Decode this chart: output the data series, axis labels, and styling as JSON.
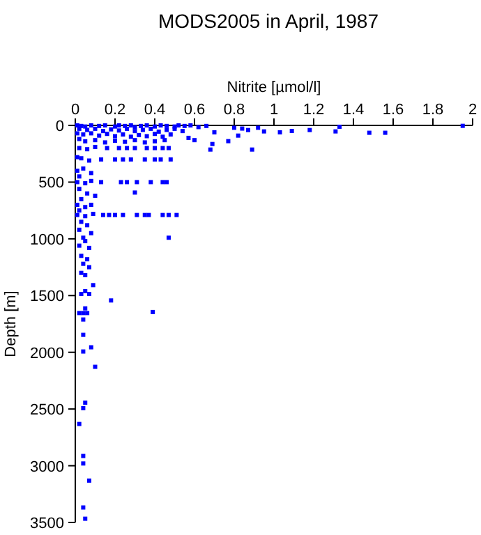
{
  "chart_data": {
    "type": "scatter",
    "title": "MODS2005 in April, 1987",
    "xlabel": "Nitrite [µmol/l]",
    "ylabel": "Depth [m]",
    "xlim": [
      0,
      2
    ],
    "xticks": [
      0,
      0.2,
      0.4,
      0.6,
      0.8,
      1,
      1.2,
      1.4,
      1.6,
      1.8,
      2
    ],
    "ylim": [
      3500,
      0
    ],
    "yticks": [
      0,
      500,
      1000,
      1500,
      2000,
      2500,
      3000,
      3500
    ],
    "grid": false,
    "marker": "square",
    "series": [
      {
        "color": "#0000ff",
        "x": [
          0.01,
          0.03,
          0.05,
          0.08,
          0.12,
          0.15,
          0.2,
          0.22,
          0.25,
          0.28,
          0.3,
          0.33,
          0.36,
          0.4,
          0.43,
          0.46,
          0.5,
          0.52,
          0.55,
          0.58,
          0.62,
          0.66,
          0.02,
          0.06,
          0.1,
          0.14,
          0.18,
          0.22,
          0.26,
          0.3,
          0.34,
          0.38,
          0.42,
          0.46,
          0.5,
          0.54,
          0.01,
          0.04,
          0.08,
          0.12,
          0.16,
          0.2,
          0.24,
          0.28,
          0.32,
          0.36,
          0.4,
          0.44,
          0.48,
          0.02,
          0.05,
          0.1,
          0.15,
          0.2,
          0.25,
          0.3,
          0.35,
          0.4,
          0.45,
          0.57,
          0.6,
          0.8,
          0.84,
          0.87,
          0.92,
          0.95,
          1.03,
          1.09,
          1.18,
          1.31,
          1.33,
          1.48,
          1.56,
          1.95,
          0.77,
          0.82,
          0.89,
          0.7,
          0.69,
          0.68,
          0.16,
          0.22,
          0.26,
          0.3,
          0.36,
          0.4,
          0.44,
          0.47,
          0.02,
          0.06,
          0.1,
          0.13,
          0.2,
          0.24,
          0.28,
          0.35,
          0.4,
          0.43,
          0.48,
          0.03,
          0.07,
          0.01,
          0.01,
          0.04,
          0.08,
          0.02,
          0.13,
          0.23,
          0.26,
          0.31,
          0.38,
          0.44,
          0.46,
          0.01,
          0.05,
          0.08,
          0.3,
          0.02,
          0.06,
          0.1,
          0.03,
          0.01,
          0.05,
          0.08,
          0.02,
          0.14,
          0.17,
          0.2,
          0.24,
          0.31,
          0.35,
          0.37,
          0.44,
          0.47,
          0.51,
          0.01,
          0.05,
          0.09,
          0.03,
          0.06,
          0.02,
          0.08,
          0.04,
          0.47,
          0.05,
          0.02,
          0.07,
          0.03,
          0.06,
          0.04,
          0.07,
          0.03,
          0.05,
          0.09,
          0.05,
          0.03,
          0.07,
          0.18,
          0.05,
          0.02,
          0.04,
          0.06,
          0.39,
          0.04,
          0.04,
          0.08,
          0.04,
          0.1,
          0.05,
          0.04,
          0.02,
          0.04,
          0.04,
          0.07,
          0.04,
          0.05
        ],
        "values": [
          0,
          5,
          10,
          0,
          5,
          0,
          10,
          0,
          5,
          0,
          15,
          5,
          0,
          10,
          0,
          5,
          10,
          0,
          5,
          0,
          15,
          5,
          30,
          40,
          30,
          50,
          35,
          45,
          30,
          50,
          40,
          30,
          55,
          40,
          30,
          50,
          70,
          80,
          70,
          90,
          75,
          95,
          80,
          100,
          85,
          95,
          75,
          100,
          80,
          120,
          140,
          130,
          150,
          135,
          145,
          130,
          150,
          140,
          130,
          110,
          130,
          21,
          28,
          41,
          21,
          53,
          61,
          49,
          41,
          53,
          12,
          65,
          65,
          4,
          139,
          90,
          213,
          61,
          164,
          213,
          200,
          200,
          200,
          200,
          200,
          200,
          200,
          200,
          200,
          210,
          190,
          300,
          300,
          300,
          300,
          300,
          300,
          300,
          300,
          290,
          310,
          280,
          400,
          380,
          420,
          450,
          500,
          500,
          500,
          500,
          500,
          500,
          500,
          500,
          510,
          490,
          592,
          560,
          600,
          620,
          650,
          700,
          720,
          700,
          750,
          790,
          790,
          790,
          790,
          790,
          790,
          790,
          790,
          790,
          790,
          790,
          800,
          780,
          850,
          880,
          920,
          950,
          990,
          990,
          1020,
          1060,
          1080,
          1150,
          1180,
          1220,
          1250,
          1300,
          1320,
          1408,
          1461,
          1486,
          1486,
          1543,
          1613,
          1654,
          1654,
          1654,
          1645,
          1711,
          1846,
          1956,
          1993,
          2128,
          2444,
          2493,
          2632,
          2914,
          2980,
          3131,
          3368,
          3467
        ]
      }
    ]
  }
}
